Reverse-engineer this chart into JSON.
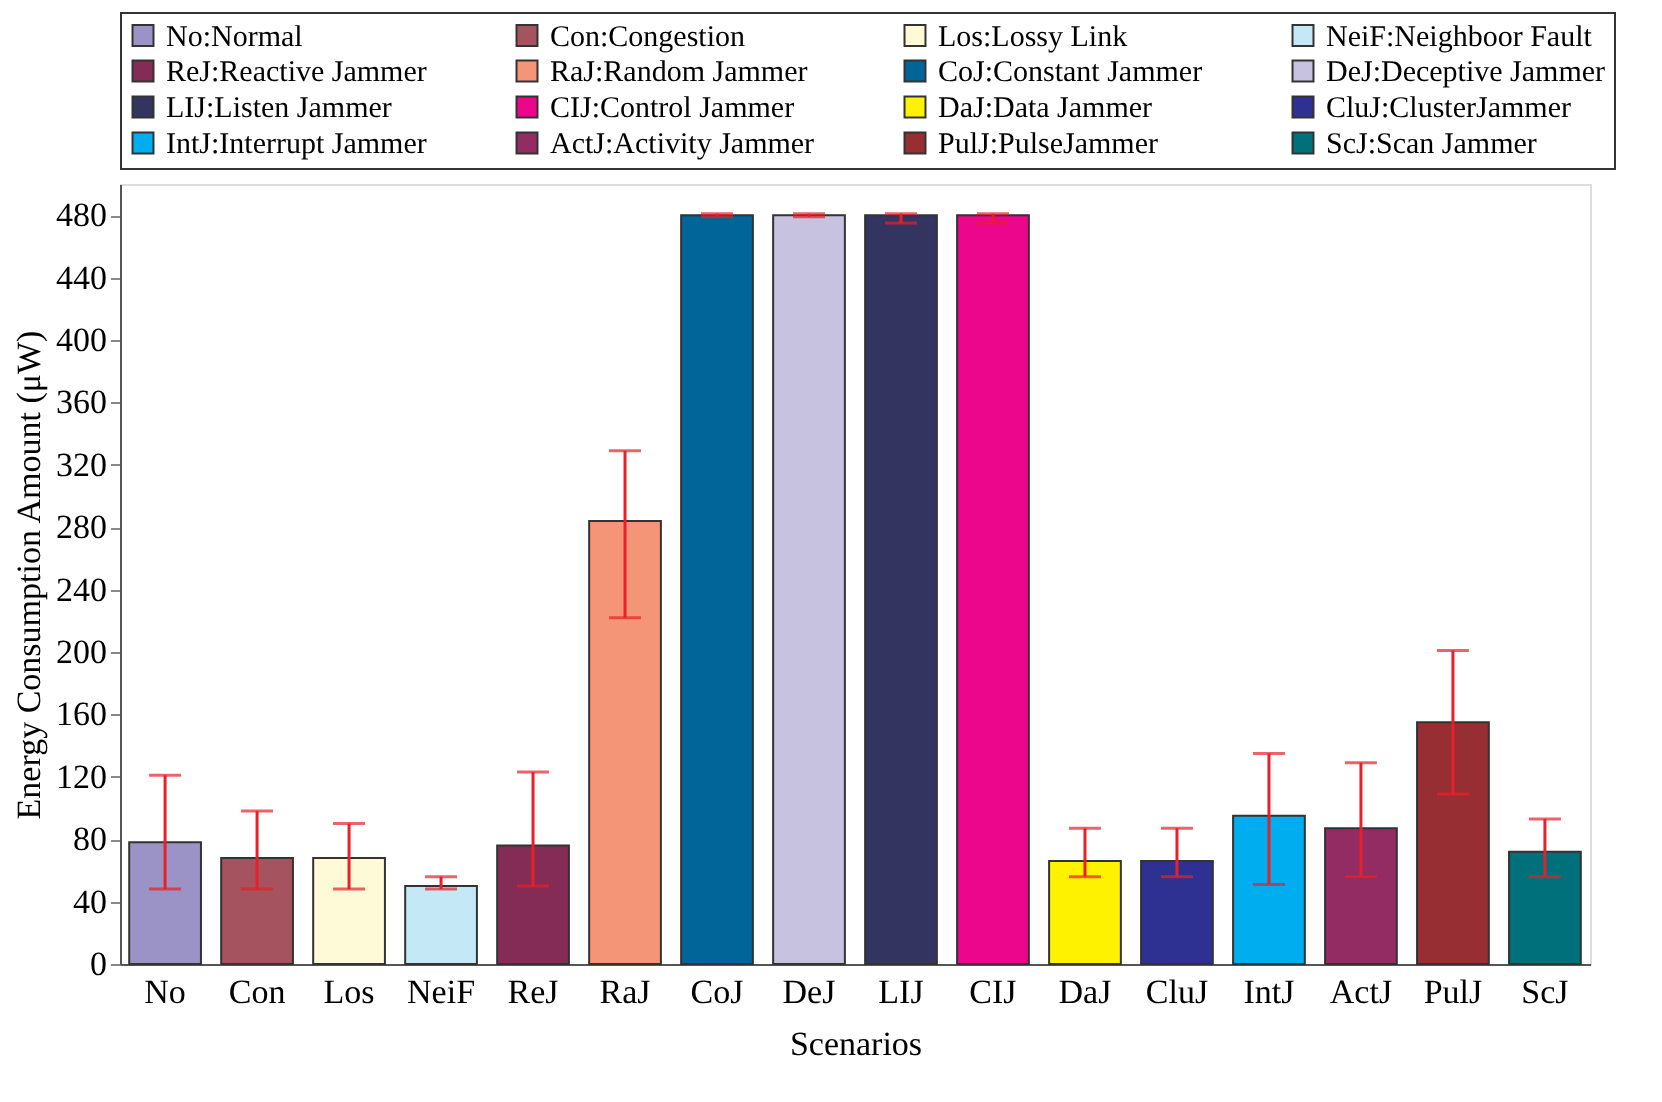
{
  "chart_data": {
    "type": "bar",
    "xlabel": "Scenarios",
    "ylabel": "Energy Consumption Amount (μW)",
    "categories": [
      "No",
      "Con",
      "Los",
      "NeiF",
      "ReJ",
      "RaJ",
      "CoJ",
      "DeJ",
      "LIJ",
      "CIJ",
      "DaJ",
      "CluJ",
      "IntJ",
      "ActJ",
      "PulJ",
      "ScJ"
    ],
    "series": [
      {
        "name": "No:Normal",
        "color": "#9b93c6",
        "values": [
          78,
          null,
          null,
          null,
          null,
          null,
          null,
          null,
          null,
          null,
          null,
          null,
          null,
          null,
          null,
          null
        ],
        "errors": [
          [
            48,
            121
          ],
          null,
          null,
          null,
          null,
          null,
          null,
          null,
          null,
          null,
          null,
          null,
          null,
          null,
          null,
          null
        ]
      },
      {
        "name": "Con:Congestion",
        "color": "#a5535e",
        "values": [
          null,
          68,
          null,
          null,
          null,
          null,
          null,
          null,
          null,
          null,
          null,
          null,
          null,
          null,
          null,
          null
        ],
        "errors": [
          null,
          [
            48,
            98
          ],
          null,
          null,
          null,
          null,
          null,
          null,
          null,
          null,
          null,
          null,
          null,
          null,
          null,
          null
        ]
      },
      {
        "name": "Los:Lossy Link",
        "color": "#fef9d6",
        "values": [
          null,
          null,
          68,
          null,
          null,
          null,
          null,
          null,
          null,
          null,
          null,
          null,
          null,
          null,
          null,
          null
        ],
        "errors": [
          null,
          null,
          [
            48,
            90
          ],
          null,
          null,
          null,
          null,
          null,
          null,
          null,
          null,
          null,
          null,
          null,
          null,
          null
        ]
      },
      {
        "name": "NeiF:Neighboor Fault",
        "color": "#c5e8f7",
        "values": [
          null,
          null,
          null,
          50,
          null,
          null,
          null,
          null,
          null,
          null,
          null,
          null,
          null,
          null,
          null,
          null
        ],
        "errors": [
          null,
          null,
          null,
          [
            48,
            56
          ],
          null,
          null,
          null,
          null,
          null,
          null,
          null,
          null,
          null,
          null,
          null,
          null
        ]
      },
      {
        "name": "ReJ:Reactive Jammer",
        "color": "#842c56",
        "values": [
          null,
          null,
          null,
          null,
          76,
          null,
          null,
          null,
          null,
          null,
          null,
          null,
          null,
          null,
          null,
          null
        ],
        "errors": [
          null,
          null,
          null,
          null,
          [
            50,
            123
          ],
          null,
          null,
          null,
          null,
          null,
          null,
          null,
          null,
          null,
          null,
          null
        ]
      },
      {
        "name": "RaJ:Random Jammer",
        "color": "#f49577",
        "values": [
          null,
          null,
          null,
          null,
          null,
          284,
          null,
          null,
          null,
          null,
          null,
          null,
          null,
          null,
          null,
          null
        ],
        "errors": [
          null,
          null,
          null,
          null,
          null,
          [
            222,
            329
          ],
          null,
          null,
          null,
          null,
          null,
          null,
          null,
          null,
          null,
          null
        ]
      },
      {
        "name": "CoJ:Constant Jammer",
        "color": "#016599",
        "values": [
          null,
          null,
          null,
          null,
          null,
          null,
          480,
          null,
          null,
          null,
          null,
          null,
          null,
          null,
          null,
          null
        ],
        "errors": [
          null,
          null,
          null,
          null,
          null,
          null,
          [
            479,
            481
          ],
          null,
          null,
          null,
          null,
          null,
          null,
          null,
          null,
          null
        ]
      },
      {
        "name": "DeJ:Deceptive Jammer",
        "color": "#c6c2df",
        "values": [
          null,
          null,
          null,
          null,
          null,
          null,
          null,
          480,
          null,
          null,
          null,
          null,
          null,
          null,
          null,
          null
        ],
        "errors": [
          null,
          null,
          null,
          null,
          null,
          null,
          null,
          [
            479,
            481
          ],
          null,
          null,
          null,
          null,
          null,
          null,
          null,
          null
        ]
      },
      {
        "name": "LIJ:Listen  Jammer",
        "color": "#343461",
        "values": [
          null,
          null,
          null,
          null,
          null,
          null,
          null,
          null,
          480,
          null,
          null,
          null,
          null,
          null,
          null,
          null
        ],
        "errors": [
          null,
          null,
          null,
          null,
          null,
          null,
          null,
          null,
          [
            475,
            481
          ],
          null,
          null,
          null,
          null,
          null,
          null,
          null
        ]
      },
      {
        "name": "CIJ:Control  Jammer",
        "color": "#ec068b",
        "values": [
          null,
          null,
          null,
          null,
          null,
          null,
          null,
          null,
          null,
          480,
          null,
          null,
          null,
          null,
          null,
          null
        ],
        "errors": [
          null,
          null,
          null,
          null,
          null,
          null,
          null,
          null,
          null,
          [
            475,
            481
          ],
          null,
          null,
          null,
          null,
          null,
          null
        ]
      },
      {
        "name": "DaJ:Data Jammer",
        "color": "#fef200",
        "values": [
          null,
          null,
          null,
          null,
          null,
          null,
          null,
          null,
          null,
          null,
          66,
          null,
          null,
          null,
          null,
          null
        ],
        "errors": [
          null,
          null,
          null,
          null,
          null,
          null,
          null,
          null,
          null,
          null,
          [
            56,
            87
          ],
          null,
          null,
          null,
          null,
          null
        ]
      },
      {
        "name": "CluJ:ClusterJammer",
        "color": "#2e3192",
        "values": [
          null,
          null,
          null,
          null,
          null,
          null,
          null,
          null,
          null,
          null,
          null,
          66,
          null,
          null,
          null,
          null
        ],
        "errors": [
          null,
          null,
          null,
          null,
          null,
          null,
          null,
          null,
          null,
          null,
          null,
          [
            56,
            87
          ],
          null,
          null,
          null,
          null
        ]
      },
      {
        "name": "IntJ:Interrupt Jammer",
        "color": "#00adef",
        "values": [
          null,
          null,
          null,
          null,
          null,
          null,
          null,
          null,
          null,
          null,
          null,
          null,
          95,
          null,
          null,
          null
        ],
        "errors": [
          null,
          null,
          null,
          null,
          null,
          null,
          null,
          null,
          null,
          null,
          null,
          null,
          [
            51,
            135
          ],
          null,
          null,
          null
        ]
      },
      {
        "name": "ActJ:Activity Jammer",
        "color": "#922c63",
        "values": [
          null,
          null,
          null,
          null,
          null,
          null,
          null,
          null,
          null,
          null,
          null,
          null,
          null,
          87,
          null,
          null
        ],
        "errors": [
          null,
          null,
          null,
          null,
          null,
          null,
          null,
          null,
          null,
          null,
          null,
          null,
          null,
          [
            56,
            129
          ],
          null,
          null
        ]
      },
      {
        "name": "PulJ:PulseJammer",
        "color": "#962e33",
        "values": [
          null,
          null,
          null,
          null,
          null,
          null,
          null,
          null,
          null,
          null,
          null,
          null,
          null,
          null,
          155,
          null
        ],
        "errors": [
          null,
          null,
          null,
          null,
          null,
          null,
          null,
          null,
          null,
          null,
          null,
          null,
          null,
          null,
          [
            109,
            201
          ],
          null
        ]
      },
      {
        "name": "ScJ:Scan Jammer",
        "color": "#00717b",
        "values": [
          null,
          null,
          null,
          null,
          null,
          null,
          null,
          null,
          null,
          null,
          null,
          null,
          null,
          null,
          null,
          72
        ],
        "errors": [
          null,
          null,
          null,
          null,
          null,
          null,
          null,
          null,
          null,
          null,
          null,
          null,
          null,
          null,
          null,
          [
            56,
            93
          ]
        ]
      }
    ],
    "ylim": [
      0,
      500
    ],
    "yticks": [
      0,
      40,
      80,
      120,
      160,
      200,
      240,
      280,
      320,
      360,
      400,
      440,
      480
    ],
    "grid": false,
    "legend": "top"
  }
}
